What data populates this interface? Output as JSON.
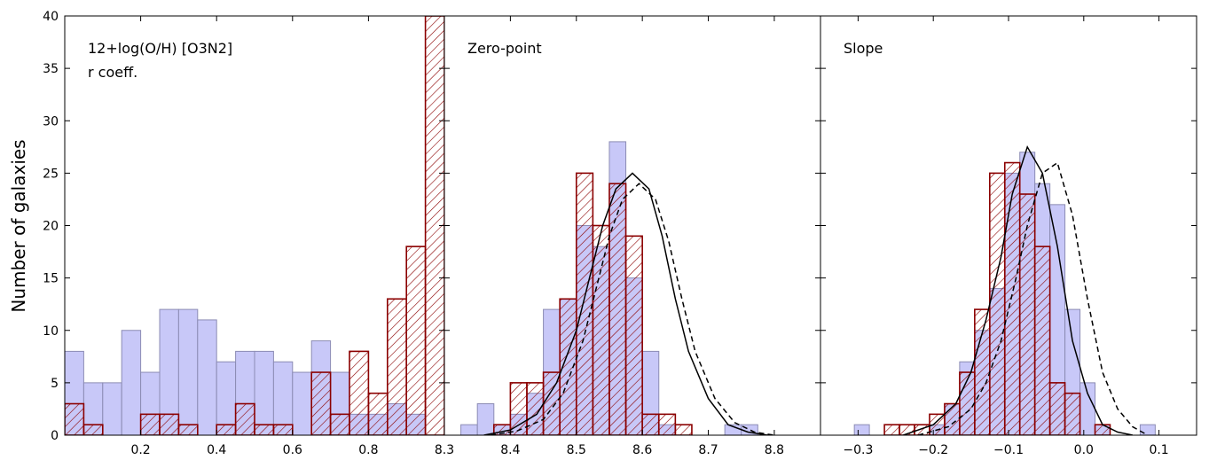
{
  "chart_data": {
    "type": "bar",
    "ylabel": "Number of galaxies",
    "ylim": [
      0,
      40
    ],
    "yticks": [
      0,
      5,
      10,
      15,
      20,
      25,
      30,
      35,
      40
    ],
    "colors": {
      "blue_fill": "#c8c8f8",
      "blue_edge": "#8c8cb4",
      "red_edge": "#8b0000",
      "curve": "#000000"
    },
    "panels": [
      {
        "labels": [
          "12+log(O/H) [O3N2]",
          "r coeff."
        ],
        "xlim": [
          0.0,
          1.0
        ],
        "xticks": [
          0.2,
          0.4,
          0.6,
          0.8
        ],
        "tick_labels": [
          "0.2",
          "0.4",
          "0.6",
          "0.8"
        ],
        "bin_start": 0.0,
        "bin_width": 0.05,
        "blue": [
          8,
          5,
          5,
          10,
          6,
          12,
          12,
          11,
          7,
          8,
          8,
          7,
          6,
          9,
          6,
          2,
          2,
          3,
          2,
          0
        ],
        "red": [
          3,
          1,
          0,
          0,
          2,
          2,
          1,
          0,
          1,
          3,
          1,
          1,
          0,
          6,
          2,
          8,
          4,
          13,
          18,
          40
        ]
      },
      {
        "labels": [
          "Zero-point"
        ],
        "xlim": [
          8.3,
          8.87
        ],
        "xticks": [
          8.3,
          8.4,
          8.5,
          8.6,
          8.7,
          8.8
        ],
        "tick_labels": [
          "8.3",
          "8.4",
          "8.5",
          "8.6",
          "8.7",
          "8.8"
        ],
        "bin_start": 8.325,
        "bin_width": 0.025,
        "blue": [
          1,
          3,
          1,
          2,
          4,
          12,
          13,
          20,
          18,
          28,
          15,
          8,
          1,
          0,
          0,
          0,
          1,
          1
        ],
        "red": [
          0,
          0,
          1,
          5,
          5,
          6,
          13,
          25,
          20,
          24,
          19,
          2,
          2,
          1,
          0,
          0,
          0,
          0
        ],
        "curves": [
          {
            "style": "solid",
            "x": [
              8.36,
              8.4,
              8.44,
              8.47,
              8.5,
              8.52,
              8.54,
              8.56,
              8.585,
              8.61,
              8.63,
              8.65,
              8.67,
              8.7,
              8.73,
              8.76,
              8.79
            ],
            "y": [
              0,
              0.5,
              2,
              5,
              10,
              15,
              20,
              23.5,
              25,
              23.5,
              19,
              13,
              8,
              3.5,
              1,
              0.3,
              0
            ]
          },
          {
            "style": "dashed",
            "x": [
              8.37,
              8.41,
              8.45,
              8.48,
              8.51,
              8.53,
              8.55,
              8.57,
              8.595,
              8.62,
              8.64,
              8.66,
              8.68,
              8.71,
              8.74,
              8.77,
              8.8
            ],
            "y": [
              0,
              0.4,
              1.5,
              4,
              9,
              14,
              19,
              22.5,
              24,
              22.5,
              18.5,
              13,
              8,
              3.5,
              1.2,
              0.3,
              0
            ]
          }
        ]
      },
      {
        "labels": [
          "Slope"
        ],
        "xlim": [
          -0.35,
          0.15
        ],
        "xticks": [
          -0.3,
          -0.2,
          -0.1,
          0.0,
          0.1
        ],
        "tick_labels": [
          "−0.3",
          "−0.2",
          "−0.1",
          "0.0",
          "0.1"
        ],
        "bin_start": -0.325,
        "bin_width": 0.02,
        "blue": [
          0,
          1,
          0,
          0,
          0,
          0,
          1,
          3,
          7,
          10,
          14,
          25,
          27,
          24,
          22,
          12,
          5,
          1,
          0,
          0,
          1,
          0
        ],
        "red": [
          0,
          0,
          0,
          1,
          1,
          1,
          2,
          3,
          6,
          12,
          25,
          26,
          23,
          18,
          5,
          4,
          0,
          1,
          0,
          0,
          0,
          0
        ],
        "curves": [
          {
            "style": "solid",
            "x": [
              -0.24,
              -0.2,
              -0.17,
              -0.15,
              -0.13,
              -0.11,
              -0.095,
              -0.075,
              -0.055,
              -0.035,
              -0.015,
              0.005,
              0.025,
              0.045,
              0.065
            ],
            "y": [
              0,
              1,
              3,
              6,
              11,
              17,
              23,
              27.5,
              25,
              18,
              9,
              4,
              1,
              0.3,
              0
            ]
          },
          {
            "style": "dashed",
            "x": [
              -0.22,
              -0.18,
              -0.15,
              -0.13,
              -0.11,
              -0.09,
              -0.075,
              -0.055,
              -0.035,
              -0.015,
              0.005,
              0.025,
              0.045,
              0.065,
              0.085
            ],
            "y": [
              0,
              0.8,
              2.5,
              5,
              9,
              15,
              20,
              25,
              26,
              21,
              13,
              6,
              2.5,
              0.8,
              0
            ]
          }
        ]
      }
    ]
  }
}
